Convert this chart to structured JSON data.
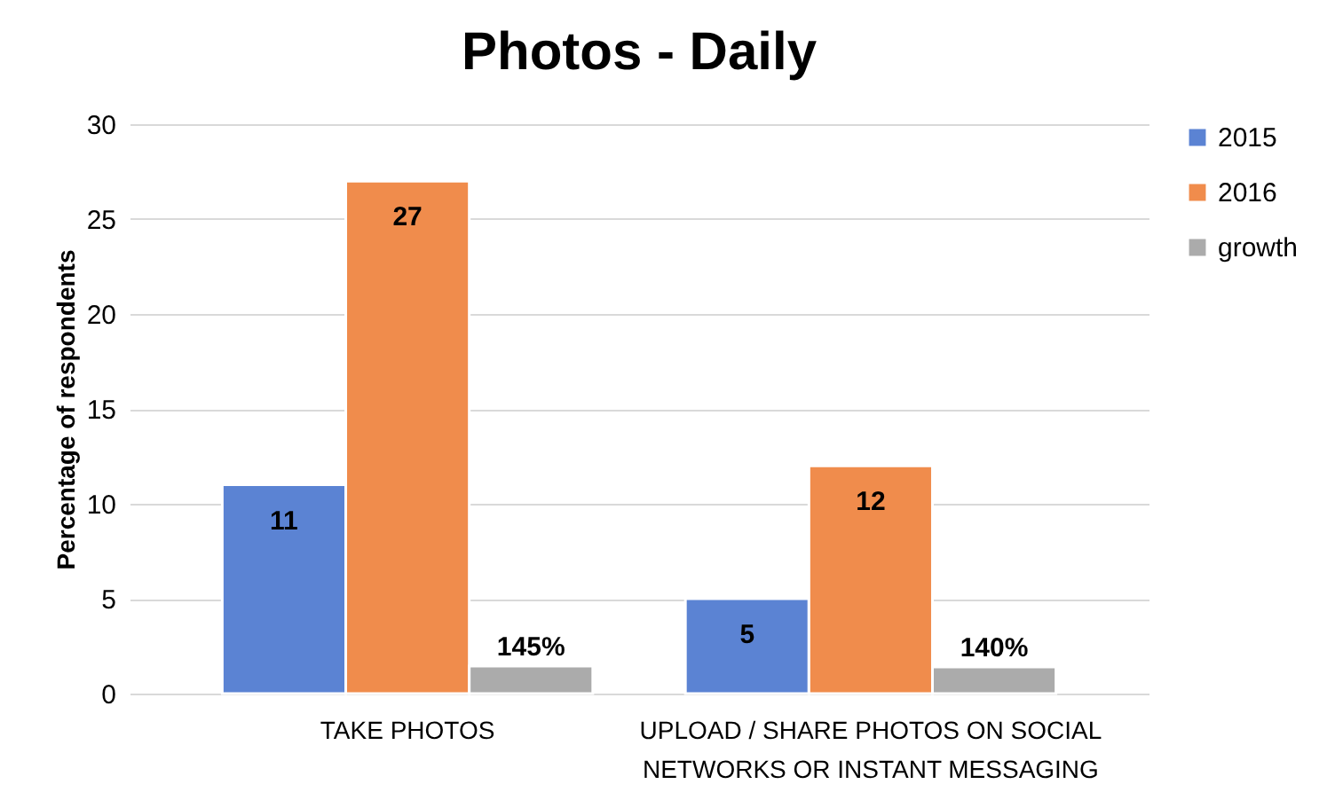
{
  "chart_data": {
    "type": "bar",
    "title": "Photos - Daily",
    "ylabel": "Percentage of respondents",
    "categories": [
      "TAKE PHOTOS",
      "UPLOAD / SHARE PHOTOS ON SOCIAL NETWORKS OR INSTANT MESSAGING"
    ],
    "series": [
      {
        "name": "2015",
        "color": "#5b83d3",
        "values": [
          11,
          5
        ],
        "value_labels": [
          "11",
          "5"
        ]
      },
      {
        "name": "2016",
        "color": "#f08c4c",
        "values": [
          27,
          12
        ],
        "value_labels": [
          "27",
          "12"
        ]
      },
      {
        "name": "growth",
        "color": "#ababab",
        "values": [
          1.45,
          1.4
        ],
        "value_labels": [
          "145%",
          "140%"
        ]
      }
    ],
    "ylim": [
      0,
      30
    ],
    "yticks": [
      0,
      5,
      10,
      15,
      20,
      25,
      30
    ],
    "grid": "y",
    "legend": "right"
  }
}
